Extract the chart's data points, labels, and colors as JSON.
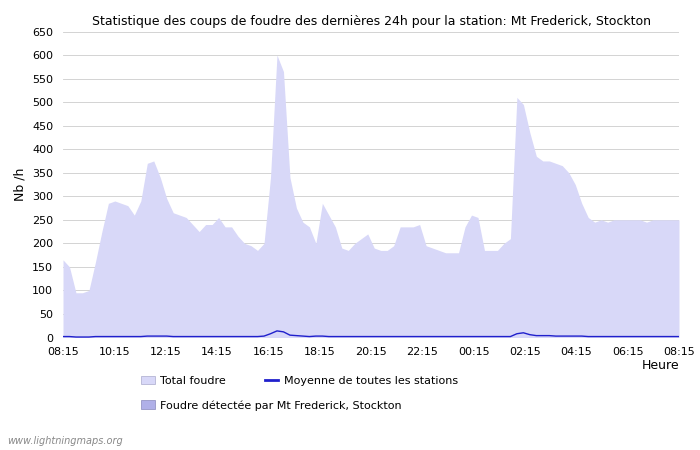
{
  "title": "Statistique des coups de foudre des dernières 24h pour la station: Mt Frederick, Stockton",
  "ylabel": "Nb /h",
  "xlabel": "Heure",
  "ylim": [
    0,
    650
  ],
  "yticks": [
    0,
    50,
    100,
    150,
    200,
    250,
    300,
    350,
    400,
    450,
    500,
    550,
    600,
    650
  ],
  "x_labels": [
    "08:15",
    "10:15",
    "12:15",
    "14:15",
    "16:15",
    "18:15",
    "20:15",
    "22:15",
    "00:15",
    "02:15",
    "04:15",
    "06:15",
    "08:15"
  ],
  "fill_color_light": "#d8d8f8",
  "fill_color_dark": "#b0b0e8",
  "line_color": "#2020cc",
  "bg_color": "#ffffff",
  "grid_color": "#cccccc",
  "watermark": "www.lightningmaps.org",
  "total_foudre": [
    165,
    150,
    95,
    95,
    100,
    160,
    225,
    285,
    290,
    285,
    280,
    260,
    290,
    370,
    375,
    340,
    295,
    265,
    260,
    255,
    240,
    225,
    240,
    240,
    255,
    235,
    235,
    215,
    200,
    195,
    185,
    200,
    340,
    600,
    565,
    340,
    275,
    245,
    235,
    200,
    285,
    260,
    235,
    190,
    185,
    200,
    210,
    220,
    190,
    185,
    185,
    195,
    235,
    235,
    235,
    240,
    195,
    190,
    185,
    180,
    180,
    180,
    235,
    260,
    255,
    185,
    185,
    185,
    200,
    210,
    510,
    495,
    435,
    385,
    375,
    375,
    370,
    365,
    350,
    325,
    285,
    255,
    245,
    250,
    245,
    250,
    250,
    250,
    250,
    250,
    245,
    250,
    250,
    250,
    250,
    250
  ],
  "station_foudre": [
    0,
    0,
    0,
    0,
    0,
    0,
    0,
    0,
    0,
    0,
    0,
    0,
    0,
    0,
    0,
    0,
    0,
    0,
    0,
    0,
    0,
    0,
    0,
    0,
    0,
    0,
    0,
    0,
    0,
    0,
    0,
    0,
    0,
    0,
    0,
    0,
    0,
    0,
    0,
    0,
    0,
    0,
    0,
    0,
    0,
    0,
    0,
    0,
    0,
    0,
    0,
    0,
    0,
    0,
    0,
    0,
    0,
    0,
    0,
    0,
    0,
    0,
    0,
    0,
    0,
    0,
    0,
    0,
    0,
    0,
    0,
    0,
    0,
    0,
    0,
    0,
    0,
    0,
    0,
    0,
    0,
    0,
    0,
    0,
    0,
    0,
    0,
    0,
    0,
    0,
    0,
    0,
    0,
    0,
    0,
    0
  ],
  "moyenne": [
    2,
    2,
    1,
    1,
    1,
    2,
    2,
    2,
    2,
    2,
    2,
    2,
    2,
    3,
    3,
    3,
    3,
    2,
    2,
    2,
    2,
    2,
    2,
    2,
    2,
    2,
    2,
    2,
    2,
    2,
    2,
    3,
    8,
    14,
    12,
    5,
    4,
    3,
    2,
    3,
    3,
    2,
    2,
    2,
    2,
    2,
    2,
    2,
    2,
    2,
    2,
    2,
    2,
    2,
    2,
    2,
    2,
    2,
    2,
    2,
    2,
    2,
    2,
    2,
    2,
    2,
    2,
    2,
    2,
    2,
    8,
    10,
    6,
    4,
    4,
    4,
    3,
    3,
    3,
    3,
    3,
    2,
    2,
    2,
    2,
    2,
    2,
    2,
    2,
    2,
    2,
    2,
    2,
    2,
    2,
    2
  ],
  "n_points": 96,
  "figsize": [
    7.0,
    4.5
  ],
  "dpi": 100
}
